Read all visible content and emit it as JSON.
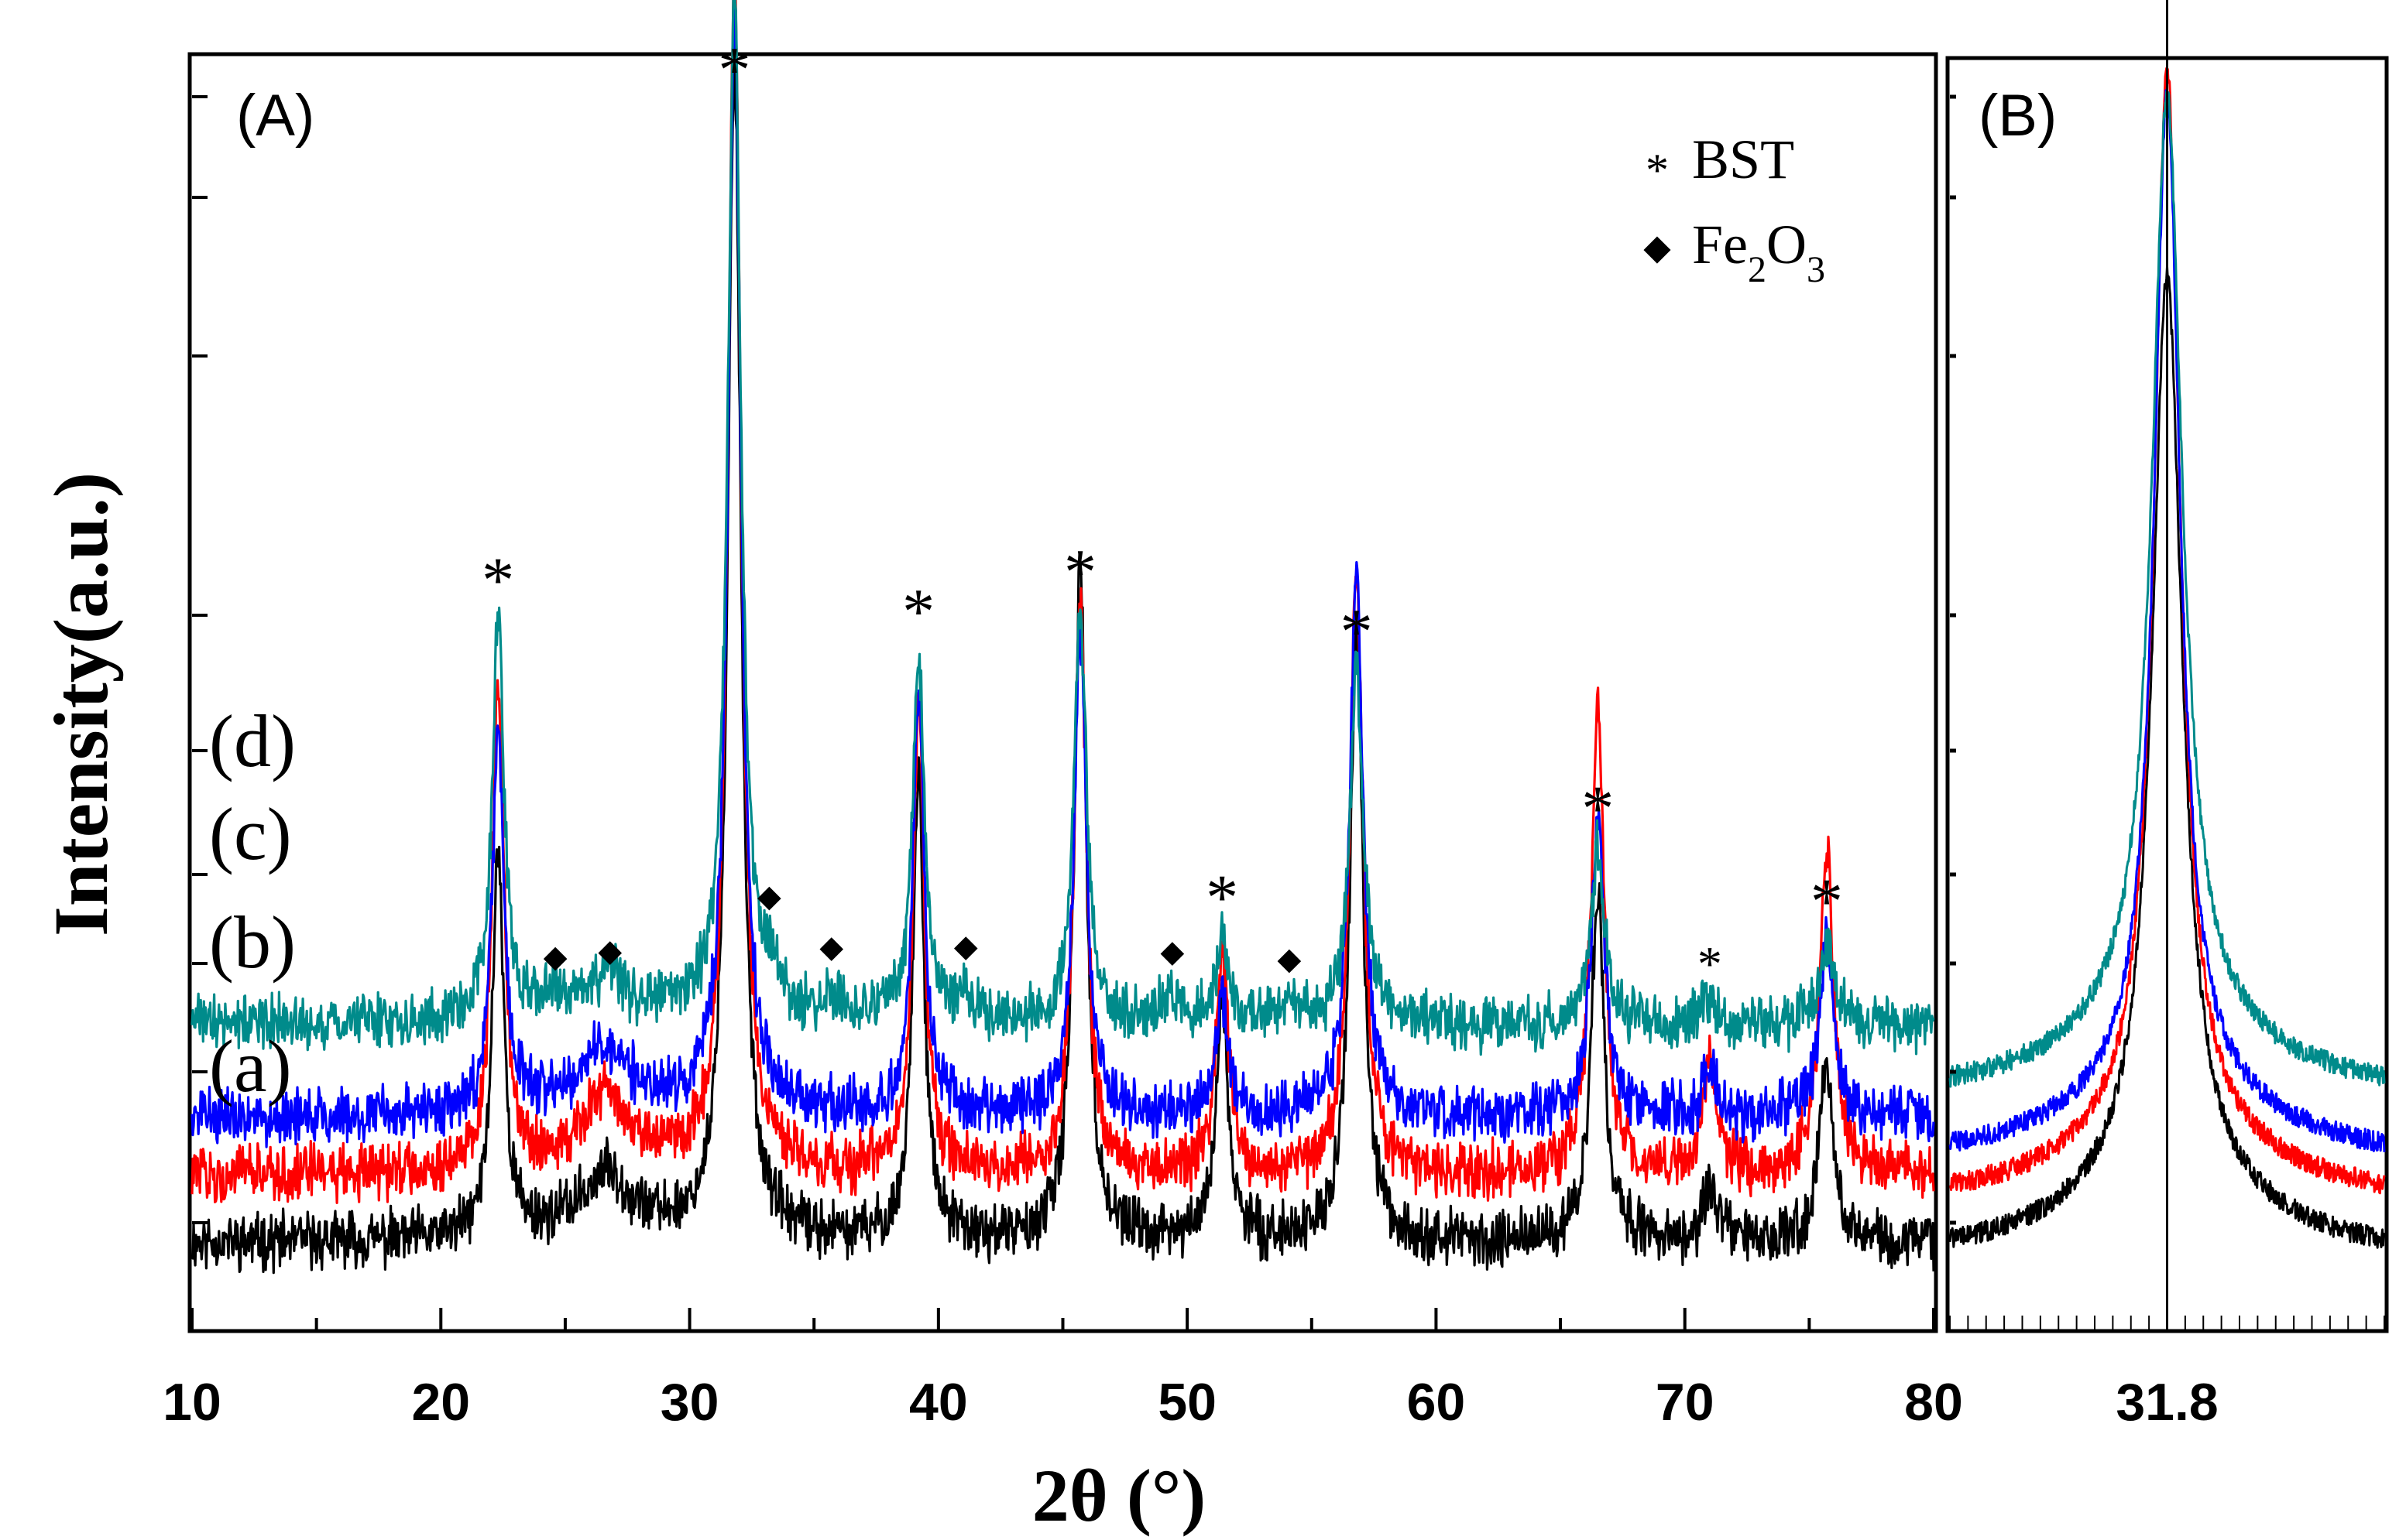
{
  "chart_data": [
    {
      "panel": "(A)",
      "type": "line",
      "xlabel": "2θ (°)",
      "ylabel": "Intensity(a.u.)",
      "xlim": [
        10,
        80
      ],
      "xticks": [
        10,
        20,
        30,
        40,
        50,
        60,
        70,
        80
      ],
      "series": [
        {
          "name": "(a)",
          "color": "#000000",
          "baseline": 0.05,
          "peaks": [
            [
              22.3,
              0.46,
              0.28
            ],
            [
              26.7,
              0.05,
              1.0
            ],
            [
              31.8,
              1.4,
              0.32
            ],
            [
              39.2,
              0.55,
              0.28
            ],
            [
              45.7,
              0.81,
              0.3
            ],
            [
              51.4,
              0.28,
              0.3
            ],
            [
              56.8,
              0.72,
              0.32
            ],
            [
              66.5,
              0.42,
              0.32
            ],
            [
              71.0,
              0.06,
              0.35
            ],
            [
              75.7,
              0.21,
              0.35
            ]
          ]
        },
        {
          "name": "(b)",
          "color": "#ff0000",
          "baseline": 0.13,
          "peaks": [
            [
              22.3,
              0.59,
              0.28
            ],
            [
              26.6,
              0.06,
              1.0
            ],
            [
              31.8,
              1.42,
              0.32
            ],
            [
              39.2,
              0.55,
              0.28
            ],
            [
              45.7,
              0.68,
              0.3
            ],
            [
              51.4,
              0.26,
              0.3
            ],
            [
              56.8,
              0.72,
              0.32
            ],
            [
              66.5,
              0.56,
              0.32
            ],
            [
              71.0,
              0.13,
              0.35
            ],
            [
              75.7,
              0.38,
              0.35
            ]
          ]
        },
        {
          "name": "(c)",
          "color": "#0000ff",
          "baseline": 0.2,
          "peaks": [
            [
              22.3,
              0.46,
              0.28
            ],
            [
              26.6,
              0.05,
              1.0
            ],
            [
              31.8,
              1.3,
              0.32
            ],
            [
              39.2,
              0.5,
              0.28
            ],
            [
              45.7,
              0.57,
              0.3
            ],
            [
              51.4,
              0.14,
              0.3
            ],
            [
              56.8,
              0.64,
              0.32
            ],
            [
              66.5,
              0.36,
              0.32
            ],
            [
              71.0,
              0.05,
              0.35
            ],
            [
              75.7,
              0.2,
              0.35
            ]
          ]
        },
        {
          "name": "(d)",
          "color": "#008b8b",
          "baseline": 0.31,
          "peaks": [
            [
              22.3,
              0.48,
              0.28
            ],
            [
              24.6,
              0.02,
              0.5
            ],
            [
              26.8,
              0.03,
              0.5
            ],
            [
              31.8,
              1.22,
              0.32
            ],
            [
              33.2,
              0.04,
              0.4
            ],
            [
              35.7,
              0.03,
              0.4
            ],
            [
              39.2,
              0.44,
              0.28
            ],
            [
              41.1,
              0.03,
              0.4
            ],
            [
              45.7,
              0.49,
              0.3
            ],
            [
              49.4,
              0.03,
              0.4
            ],
            [
              51.4,
              0.1,
              0.3
            ],
            [
              54.1,
              0.02,
              0.4
            ],
            [
              56.8,
              0.42,
              0.32
            ],
            [
              66.5,
              0.21,
              0.32
            ],
            [
              71.0,
              0.03,
              0.35
            ],
            [
              75.7,
              0.1,
              0.35
            ]
          ]
        }
      ],
      "bst_markers": [
        22.3,
        31.8,
        39.2,
        45.7,
        51.4,
        56.8,
        66.5,
        71.0,
        75.7
      ],
      "fe2o3_markers": [
        24.6,
        26.8,
        33.2,
        35.7,
        41.1,
        49.4,
        54.1
      ],
      "series_labels": [
        "(d)",
        "(c)",
        "(b)",
        "(a)"
      ],
      "legend": {
        "bst": "BST",
        "fe2o3": {
          "base": "Fe",
          "sub1": "2",
          "mid": "O",
          "sub2": "3"
        },
        "placement": "top-right"
      },
      "marker_symbols": {
        "bst": "*",
        "fe2o3": "◆"
      }
    },
    {
      "panel": "(B)",
      "type": "line",
      "xlabel": "",
      "xlim": [
        30.0,
        33.6
      ],
      "xticks": [
        31.8
      ],
      "reference_line": 31.8,
      "series": [
        {
          "name": "(a)",
          "color": "#000000",
          "baseline": 0.1,
          "amp": 3.9,
          "width": 0.15
        },
        {
          "name": "(b)",
          "color": "#ff0000",
          "baseline": 0.34,
          "amp": 4.56,
          "width": 0.13
        },
        {
          "name": "(c)",
          "color": "#0000ff",
          "baseline": 0.52,
          "amp": 4.27,
          "width": 0.13
        },
        {
          "name": "(d)",
          "color": "#008b8b",
          "baseline": 0.8,
          "amp": 3.98,
          "width": 0.15
        }
      ]
    }
  ]
}
